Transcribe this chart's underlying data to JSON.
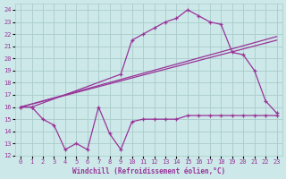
{
  "xlabel": "Windchill (Refroidissement éolien,°C)",
  "bg_color": "#cce8e8",
  "grid_color": "#aacccc",
  "line_color": "#993399",
  "ylim": [
    12,
    24.5
  ],
  "xlim": [
    -0.5,
    23.5
  ],
  "yticks": [
    12,
    13,
    14,
    15,
    16,
    17,
    18,
    19,
    20,
    21,
    22,
    23,
    24
  ],
  "xticks": [
    0,
    1,
    2,
    3,
    4,
    5,
    6,
    7,
    8,
    9,
    10,
    11,
    12,
    13,
    14,
    15,
    16,
    17,
    18,
    19,
    20,
    21,
    22,
    23
  ],
  "series": [
    {
      "x": [
        0,
        1,
        2,
        3,
        4,
        5,
        6,
        7,
        8,
        9,
        10,
        11,
        12,
        13,
        14,
        15,
        16,
        17,
        18,
        19,
        20,
        21,
        22,
        23
      ],
      "y": [
        16,
        16,
        15,
        14.5,
        12.5,
        13,
        12.5,
        16,
        13.8,
        12.5,
        14.8,
        15,
        15,
        15,
        15,
        15.3,
        15.3,
        15.3,
        15.3,
        15.3,
        15.3,
        15.3,
        15.3,
        15.3
      ],
      "marker": true
    },
    {
      "x": [
        0,
        23
      ],
      "y": [
        16,
        21.5
      ],
      "marker": false
    },
    {
      "x": [
        0,
        23
      ],
      "y": [
        16,
        21.8
      ],
      "marker": false
    },
    {
      "x": [
        0,
        1,
        9,
        10,
        11,
        12,
        13,
        14,
        15,
        16,
        17,
        18,
        19,
        20,
        21,
        22,
        23
      ],
      "y": [
        16,
        16,
        18.7,
        21.5,
        22,
        22.5,
        23.0,
        23.3,
        24.0,
        23.5,
        23.0,
        22.8,
        20.5,
        20.3,
        19.0,
        16.5,
        15.5
      ],
      "marker": true
    }
  ]
}
